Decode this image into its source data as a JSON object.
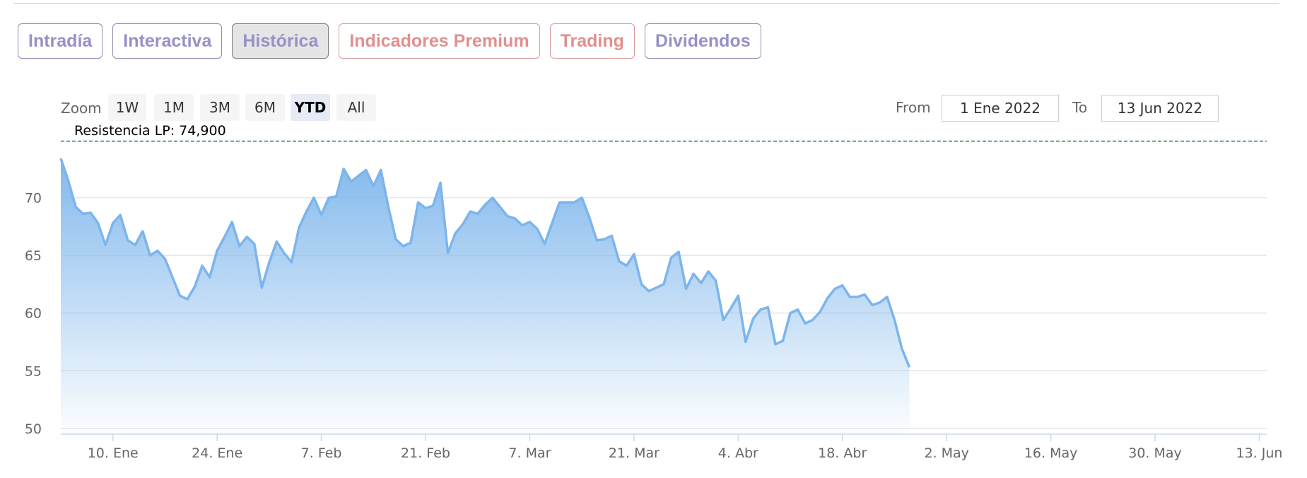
{
  "tabs": [
    {
      "label": "Intradía",
      "state": "normal"
    },
    {
      "label": "Interactiva",
      "state": "normal"
    },
    {
      "label": "Histórica",
      "state": "active"
    },
    {
      "label": "Indicadores Premium",
      "state": "warm"
    },
    {
      "label": "Trading",
      "state": "warm"
    },
    {
      "label": "Dividendos",
      "state": "normal"
    }
  ],
  "range_selector": {
    "zoom_label": "Zoom",
    "buttons": [
      "1W",
      "1M",
      "3M",
      "6M",
      "YTD",
      "All"
    ],
    "selected": "YTD",
    "from_label": "From",
    "from_value": "1 Ene 2022",
    "to_label": "To",
    "to_value": "13 Jun 2022"
  },
  "colors": {
    "line": "#7cb5ec",
    "area_top": "#7cb5ec",
    "resistance": "#2e7d32",
    "tab_text": "#9691c7",
    "tab_warm_text": "#e0908f"
  },
  "chart_data": {
    "type": "area",
    "x_start": "2022-01-03",
    "x_end": "2022-06-14",
    "ylim": [
      49.5,
      75
    ],
    "y_ticks": [
      50,
      55,
      60,
      65,
      70
    ],
    "x_ticks": [
      {
        "date": "2022-01-10",
        "label": "10. Ene"
      },
      {
        "date": "2022-01-24",
        "label": "24. Ene"
      },
      {
        "date": "2022-02-07",
        "label": "7. Feb"
      },
      {
        "date": "2022-02-21",
        "label": "21. Feb"
      },
      {
        "date": "2022-03-07",
        "label": "7. Mar"
      },
      {
        "date": "2022-03-21",
        "label": "21. Mar"
      },
      {
        "date": "2022-04-04",
        "label": "4. Abr"
      },
      {
        "date": "2022-04-18",
        "label": "18. Abr"
      },
      {
        "date": "2022-05-02",
        "label": "2. May"
      },
      {
        "date": "2022-05-16",
        "label": "16. May"
      },
      {
        "date": "2022-05-30",
        "label": "30. May"
      },
      {
        "date": "2022-06-13",
        "label": "13. Jun"
      }
    ],
    "grid": true,
    "plot_band_line": {
      "label": "Resistencia LP: 74,900",
      "value": 74.9,
      "style": "dashed"
    },
    "series": [
      {
        "points": [
          [
            "2022-01-03",
            73.4
          ],
          [
            "2022-01-04",
            71.5
          ],
          [
            "2022-01-05",
            69.2
          ],
          [
            "2022-01-06",
            68.6
          ],
          [
            "2022-01-07",
            68.7
          ],
          [
            "2022-01-08",
            67.8
          ],
          [
            "2022-01-09",
            65.9
          ],
          [
            "2022-01-10",
            67.8
          ],
          [
            "2022-01-11",
            68.5
          ],
          [
            "2022-01-12",
            66.3
          ],
          [
            "2022-01-13",
            65.9
          ],
          [
            "2022-01-14",
            67.1
          ],
          [
            "2022-01-15",
            65.0
          ],
          [
            "2022-01-16",
            65.4
          ],
          [
            "2022-01-17",
            64.7
          ],
          [
            "2022-01-18",
            63.1
          ],
          [
            "2022-01-19",
            61.5
          ],
          [
            "2022-01-20",
            61.2
          ],
          [
            "2022-01-21",
            62.3
          ],
          [
            "2022-01-22",
            64.1
          ],
          [
            "2022-01-23",
            63.1
          ],
          [
            "2022-01-24",
            65.4
          ],
          [
            "2022-01-25",
            66.6
          ],
          [
            "2022-01-26",
            67.9
          ],
          [
            "2022-01-27",
            65.8
          ],
          [
            "2022-01-28",
            66.6
          ],
          [
            "2022-01-29",
            66.0
          ],
          [
            "2022-01-30",
            62.2
          ],
          [
            "2022-01-31",
            64.4
          ],
          [
            "2022-02-01",
            66.2
          ],
          [
            "2022-02-02",
            65.2
          ],
          [
            "2022-02-03",
            64.4
          ],
          [
            "2022-02-04",
            67.4
          ],
          [
            "2022-02-05",
            68.8
          ],
          [
            "2022-02-06",
            70.0
          ],
          [
            "2022-02-07",
            68.5
          ],
          [
            "2022-02-08",
            70.0
          ],
          [
            "2022-02-09",
            70.1
          ],
          [
            "2022-02-10",
            72.5
          ],
          [
            "2022-02-11",
            71.4
          ],
          [
            "2022-02-12",
            71.9
          ],
          [
            "2022-02-13",
            72.4
          ],
          [
            "2022-02-14",
            71.0
          ],
          [
            "2022-02-15",
            72.4
          ],
          [
            "2022-02-16",
            69.2
          ],
          [
            "2022-02-17",
            66.4
          ],
          [
            "2022-02-18",
            65.8
          ],
          [
            "2022-02-19",
            66.1
          ],
          [
            "2022-02-20",
            69.6
          ],
          [
            "2022-02-21",
            69.1
          ],
          [
            "2022-02-22",
            69.3
          ],
          [
            "2022-02-23",
            71.3
          ],
          [
            "2022-02-24",
            65.2
          ],
          [
            "2022-02-25",
            66.9
          ],
          [
            "2022-02-26",
            67.7
          ],
          [
            "2022-02-27",
            68.8
          ],
          [
            "2022-02-28",
            68.6
          ],
          [
            "2022-03-01",
            69.4
          ],
          [
            "2022-03-02",
            70.0
          ],
          [
            "2022-03-03",
            69.2
          ],
          [
            "2022-03-04",
            68.4
          ],
          [
            "2022-03-05",
            68.2
          ],
          [
            "2022-03-06",
            67.6
          ],
          [
            "2022-03-07",
            67.9
          ],
          [
            "2022-03-08",
            67.3
          ],
          [
            "2022-03-09",
            66.0
          ],
          [
            "2022-03-10",
            67.8
          ],
          [
            "2022-03-11",
            69.6
          ],
          [
            "2022-03-12",
            69.6
          ],
          [
            "2022-03-13",
            69.6
          ],
          [
            "2022-03-14",
            70.0
          ],
          [
            "2022-03-15",
            68.3
          ],
          [
            "2022-03-16",
            66.3
          ],
          [
            "2022-03-17",
            66.4
          ],
          [
            "2022-03-18",
            66.7
          ],
          [
            "2022-03-19",
            64.5
          ],
          [
            "2022-03-20",
            64.1
          ],
          [
            "2022-03-21",
            65.1
          ],
          [
            "2022-03-22",
            62.5
          ],
          [
            "2022-03-23",
            61.9
          ],
          [
            "2022-03-24",
            62.2
          ],
          [
            "2022-03-25",
            62.5
          ],
          [
            "2022-03-26",
            64.8
          ],
          [
            "2022-03-27",
            65.3
          ],
          [
            "2022-03-28",
            62.1
          ],
          [
            "2022-03-29",
            63.4
          ],
          [
            "2022-03-30",
            62.6
          ],
          [
            "2022-03-31",
            63.6
          ],
          [
            "2022-04-01",
            62.8
          ],
          [
            "2022-04-02",
            59.4
          ],
          [
            "2022-04-03",
            60.4
          ],
          [
            "2022-04-04",
            61.5
          ],
          [
            "2022-04-05",
            57.5
          ],
          [
            "2022-04-06",
            59.5
          ],
          [
            "2022-04-07",
            60.3
          ],
          [
            "2022-04-08",
            60.5
          ],
          [
            "2022-04-09",
            57.3
          ],
          [
            "2022-04-10",
            57.6
          ],
          [
            "2022-04-11",
            60.0
          ],
          [
            "2022-04-12",
            60.3
          ],
          [
            "2022-04-13",
            59.1
          ],
          [
            "2022-04-14",
            59.4
          ],
          [
            "2022-04-15",
            60.1
          ],
          [
            "2022-04-16",
            61.3
          ],
          [
            "2022-04-17",
            62.1
          ],
          [
            "2022-04-18",
            62.4
          ],
          [
            "2022-04-19",
            61.4
          ],
          [
            "2022-04-20",
            61.4
          ],
          [
            "2022-04-21",
            61.6
          ],
          [
            "2022-04-22",
            60.7
          ],
          [
            "2022-04-23",
            60.9
          ],
          [
            "2022-04-24",
            61.4
          ],
          [
            "2022-04-25",
            59.4
          ],
          [
            "2022-04-26",
            56.9
          ],
          [
            "2022-04-27",
            55.3
          ]
        ]
      }
    ]
  }
}
